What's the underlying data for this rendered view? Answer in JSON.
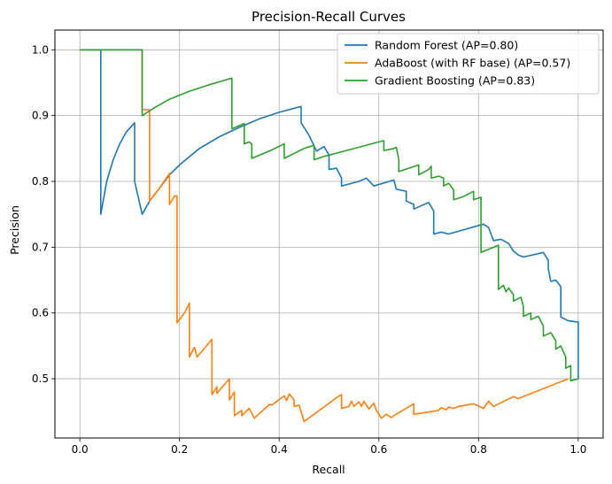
{
  "chart_data": {
    "type": "line",
    "title": "Precision-Recall Curves",
    "xlabel": "Recall",
    "ylabel": "Precision",
    "xlim": [
      -0.05,
      1.05
    ],
    "ylim": [
      0.41,
      1.03
    ],
    "xticks": [
      0.0,
      0.2,
      0.4,
      0.6,
      0.8,
      1.0
    ],
    "xtick_labels": [
      "0.0",
      "0.2",
      "0.4",
      "0.6",
      "0.8",
      "1.0"
    ],
    "yticks": [
      0.5,
      0.6,
      0.7,
      0.8,
      0.9,
      1.0
    ],
    "ytick_labels": [
      "0.5",
      "0.6",
      "0.7",
      "0.8",
      "0.9",
      "1.0"
    ],
    "grid": true,
    "legend_position": "top-right",
    "series": [
      {
        "name": "Random Forest (AP=0.80)",
        "color": "#1f77b4",
        "points": [
          [
            0.0,
            1.0
          ],
          [
            0.042,
            1.0
          ],
          [
            0.042,
            0.75
          ],
          [
            0.054,
            0.8
          ],
          [
            0.067,
            0.833
          ],
          [
            0.08,
            0.857
          ],
          [
            0.093,
            0.875
          ],
          [
            0.11,
            0.889
          ],
          [
            0.11,
            0.8
          ],
          [
            0.125,
            0.75
          ],
          [
            0.14,
            0.77
          ],
          [
            0.16,
            0.79
          ],
          [
            0.18,
            0.81
          ],
          [
            0.2,
            0.825
          ],
          [
            0.24,
            0.85
          ],
          [
            0.28,
            0.868
          ],
          [
            0.32,
            0.882
          ],
          [
            0.36,
            0.895
          ],
          [
            0.4,
            0.905
          ],
          [
            0.444,
            0.914
          ],
          [
            0.444,
            0.889
          ],
          [
            0.46,
            0.87
          ],
          [
            0.475,
            0.846
          ],
          [
            0.49,
            0.853
          ],
          [
            0.5,
            0.84
          ],
          [
            0.5,
            0.818
          ],
          [
            0.515,
            0.82
          ],
          [
            0.525,
            0.805
          ],
          [
            0.525,
            0.793
          ],
          [
            0.56,
            0.8
          ],
          [
            0.575,
            0.805
          ],
          [
            0.59,
            0.793
          ],
          [
            0.63,
            0.802
          ],
          [
            0.635,
            0.788
          ],
          [
            0.655,
            0.785
          ],
          [
            0.655,
            0.77
          ],
          [
            0.67,
            0.765
          ],
          [
            0.67,
            0.758
          ],
          [
            0.7,
            0.768
          ],
          [
            0.71,
            0.755
          ],
          [
            0.71,
            0.72
          ],
          [
            0.725,
            0.723
          ],
          [
            0.74,
            0.72
          ],
          [
            0.81,
            0.735
          ],
          [
            0.82,
            0.73
          ],
          [
            0.83,
            0.71
          ],
          [
            0.845,
            0.712
          ],
          [
            0.86,
            0.706
          ],
          [
            0.87,
            0.694
          ],
          [
            0.88,
            0.688
          ],
          [
            0.89,
            0.685
          ],
          [
            0.93,
            0.692
          ],
          [
            0.94,
            0.68
          ],
          [
            0.94,
            0.667
          ],
          [
            0.945,
            0.648
          ],
          [
            0.955,
            0.65
          ],
          [
            0.965,
            0.64
          ],
          [
            0.965,
            0.594
          ],
          [
            0.98,
            0.588
          ],
          [
            1.0,
            0.586
          ],
          [
            1.0,
            0.5
          ]
        ]
      },
      {
        "name": "AdaBoost (with RF base) (AP=0.57)",
        "color": "#ff7f0e",
        "points": [
          [
            0.0,
            1.0
          ],
          [
            0.125,
            1.0
          ],
          [
            0.125,
            0.909
          ],
          [
            0.14,
            0.909
          ],
          [
            0.14,
            0.77
          ],
          [
            0.15,
            0.78
          ],
          [
            0.16,
            0.79
          ],
          [
            0.18,
            0.812
          ],
          [
            0.18,
            0.765
          ],
          [
            0.19,
            0.778
          ],
          [
            0.195,
            0.778
          ],
          [
            0.195,
            0.585
          ],
          [
            0.21,
            0.6
          ],
          [
            0.22,
            0.615
          ],
          [
            0.22,
            0.533
          ],
          [
            0.23,
            0.548
          ],
          [
            0.235,
            0.533
          ],
          [
            0.265,
            0.56
          ],
          [
            0.265,
            0.476
          ],
          [
            0.275,
            0.488
          ],
          [
            0.275,
            0.478
          ],
          [
            0.3,
            0.5
          ],
          [
            0.3,
            0.468
          ],
          [
            0.31,
            0.48
          ],
          [
            0.31,
            0.444
          ],
          [
            0.325,
            0.452
          ],
          [
            0.325,
            0.444
          ],
          [
            0.34,
            0.455
          ],
          [
            0.35,
            0.44
          ],
          [
            0.38,
            0.461
          ],
          [
            0.385,
            0.46
          ],
          [
            0.41,
            0.474
          ],
          [
            0.415,
            0.467
          ],
          [
            0.42,
            0.477
          ],
          [
            0.43,
            0.468
          ],
          [
            0.43,
            0.458
          ],
          [
            0.44,
            0.46
          ],
          [
            0.45,
            0.435
          ],
          [
            0.52,
            0.474
          ],
          [
            0.525,
            0.476
          ],
          [
            0.525,
            0.455
          ],
          [
            0.54,
            0.458
          ],
          [
            0.545,
            0.466
          ],
          [
            0.55,
            0.458
          ],
          [
            0.56,
            0.465
          ],
          [
            0.565,
            0.458
          ],
          [
            0.57,
            0.466
          ],
          [
            0.58,
            0.454
          ],
          [
            0.59,
            0.463
          ],
          [
            0.595,
            0.452
          ],
          [
            0.605,
            0.44
          ],
          [
            0.615,
            0.446
          ],
          [
            0.625,
            0.441
          ],
          [
            0.63,
            0.444
          ],
          [
            0.67,
            0.462
          ],
          [
            0.67,
            0.446
          ],
          [
            0.72,
            0.452
          ],
          [
            0.725,
            0.456
          ],
          [
            0.735,
            0.453
          ],
          [
            0.74,
            0.457
          ],
          [
            0.75,
            0.455
          ],
          [
            0.76,
            0.458
          ],
          [
            0.79,
            0.462
          ],
          [
            0.81,
            0.455
          ],
          [
            0.82,
            0.466
          ],
          [
            0.83,
            0.458
          ],
          [
            0.87,
            0.473
          ],
          [
            0.88,
            0.47
          ],
          [
            0.98,
            0.5
          ]
        ]
      },
      {
        "name": "Gradient Boosting (AP=0.83)",
        "color": "#2ca02c",
        "points": [
          [
            0.0,
            1.0
          ],
          [
            0.125,
            1.0
          ],
          [
            0.125,
            0.9
          ],
          [
            0.15,
            0.912
          ],
          [
            0.18,
            0.925
          ],
          [
            0.22,
            0.937
          ],
          [
            0.26,
            0.947
          ],
          [
            0.305,
            0.957
          ],
          [
            0.305,
            0.88
          ],
          [
            0.33,
            0.888
          ],
          [
            0.33,
            0.857
          ],
          [
            0.34,
            0.86
          ],
          [
            0.345,
            0.857
          ],
          [
            0.345,
            0.835
          ],
          [
            0.38,
            0.846
          ],
          [
            0.41,
            0.857
          ],
          [
            0.41,
            0.835
          ],
          [
            0.45,
            0.85
          ],
          [
            0.47,
            0.855
          ],
          [
            0.47,
            0.833
          ],
          [
            0.49,
            0.838
          ],
          [
            0.5,
            0.84
          ],
          [
            0.61,
            0.862
          ],
          [
            0.61,
            0.847
          ],
          [
            0.63,
            0.85
          ],
          [
            0.635,
            0.852
          ],
          [
            0.64,
            0.833
          ],
          [
            0.64,
            0.815
          ],
          [
            0.66,
            0.82
          ],
          [
            0.68,
            0.825
          ],
          [
            0.68,
            0.81
          ],
          [
            0.7,
            0.818
          ],
          [
            0.705,
            0.823
          ],
          [
            0.705,
            0.805
          ],
          [
            0.72,
            0.808
          ],
          [
            0.73,
            0.805
          ],
          [
            0.73,
            0.793
          ],
          [
            0.74,
            0.797
          ],
          [
            0.75,
            0.787
          ],
          [
            0.75,
            0.772
          ],
          [
            0.77,
            0.777
          ],
          [
            0.79,
            0.785
          ],
          [
            0.79,
            0.772
          ],
          [
            0.805,
            0.776
          ],
          [
            0.805,
            0.692
          ],
          [
            0.84,
            0.703
          ],
          [
            0.84,
            0.636
          ],
          [
            0.85,
            0.642
          ],
          [
            0.855,
            0.632
          ],
          [
            0.86,
            0.638
          ],
          [
            0.87,
            0.628
          ],
          [
            0.87,
            0.618
          ],
          [
            0.885,
            0.624
          ],
          [
            0.89,
            0.61
          ],
          [
            0.89,
            0.595
          ],
          [
            0.905,
            0.6
          ],
          [
            0.905,
            0.59
          ],
          [
            0.92,
            0.595
          ],
          [
            0.93,
            0.58
          ],
          [
            0.93,
            0.565
          ],
          [
            0.945,
            0.57
          ],
          [
            0.955,
            0.558
          ],
          [
            0.955,
            0.545
          ],
          [
            0.965,
            0.55
          ],
          [
            0.975,
            0.533
          ],
          [
            0.975,
            0.516
          ],
          [
            0.985,
            0.52
          ],
          [
            0.985,
            0.497
          ],
          [
            1.0,
            0.5
          ]
        ]
      }
    ]
  }
}
